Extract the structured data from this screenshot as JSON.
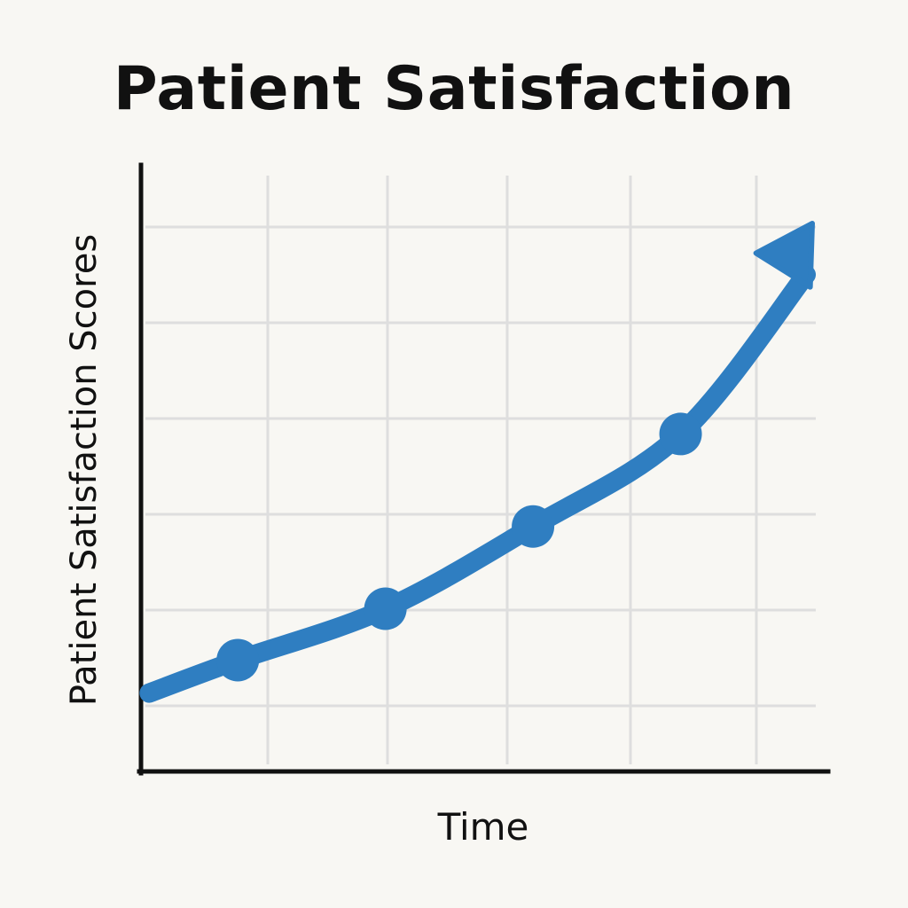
{
  "chart_data": {
    "type": "line",
    "title": "Patient Satisfaction",
    "xlabel": "Time",
    "ylabel": "Patient Satisfaction Scores",
    "x": [
      1,
      2,
      3,
      4
    ],
    "series": [
      {
        "values": [
          1.7,
          2.2,
          3.0,
          3.9
        ]
      }
    ],
    "xlim": [
      0.35,
      5.0
    ],
    "ylim": [
      0.6,
      6.5
    ],
    "grid": true,
    "end_arrow": true,
    "colors": {
      "line": "#2f7ec1",
      "grid": "#dedede",
      "axis": "#111111",
      "background": "#f8f7f3"
    }
  }
}
